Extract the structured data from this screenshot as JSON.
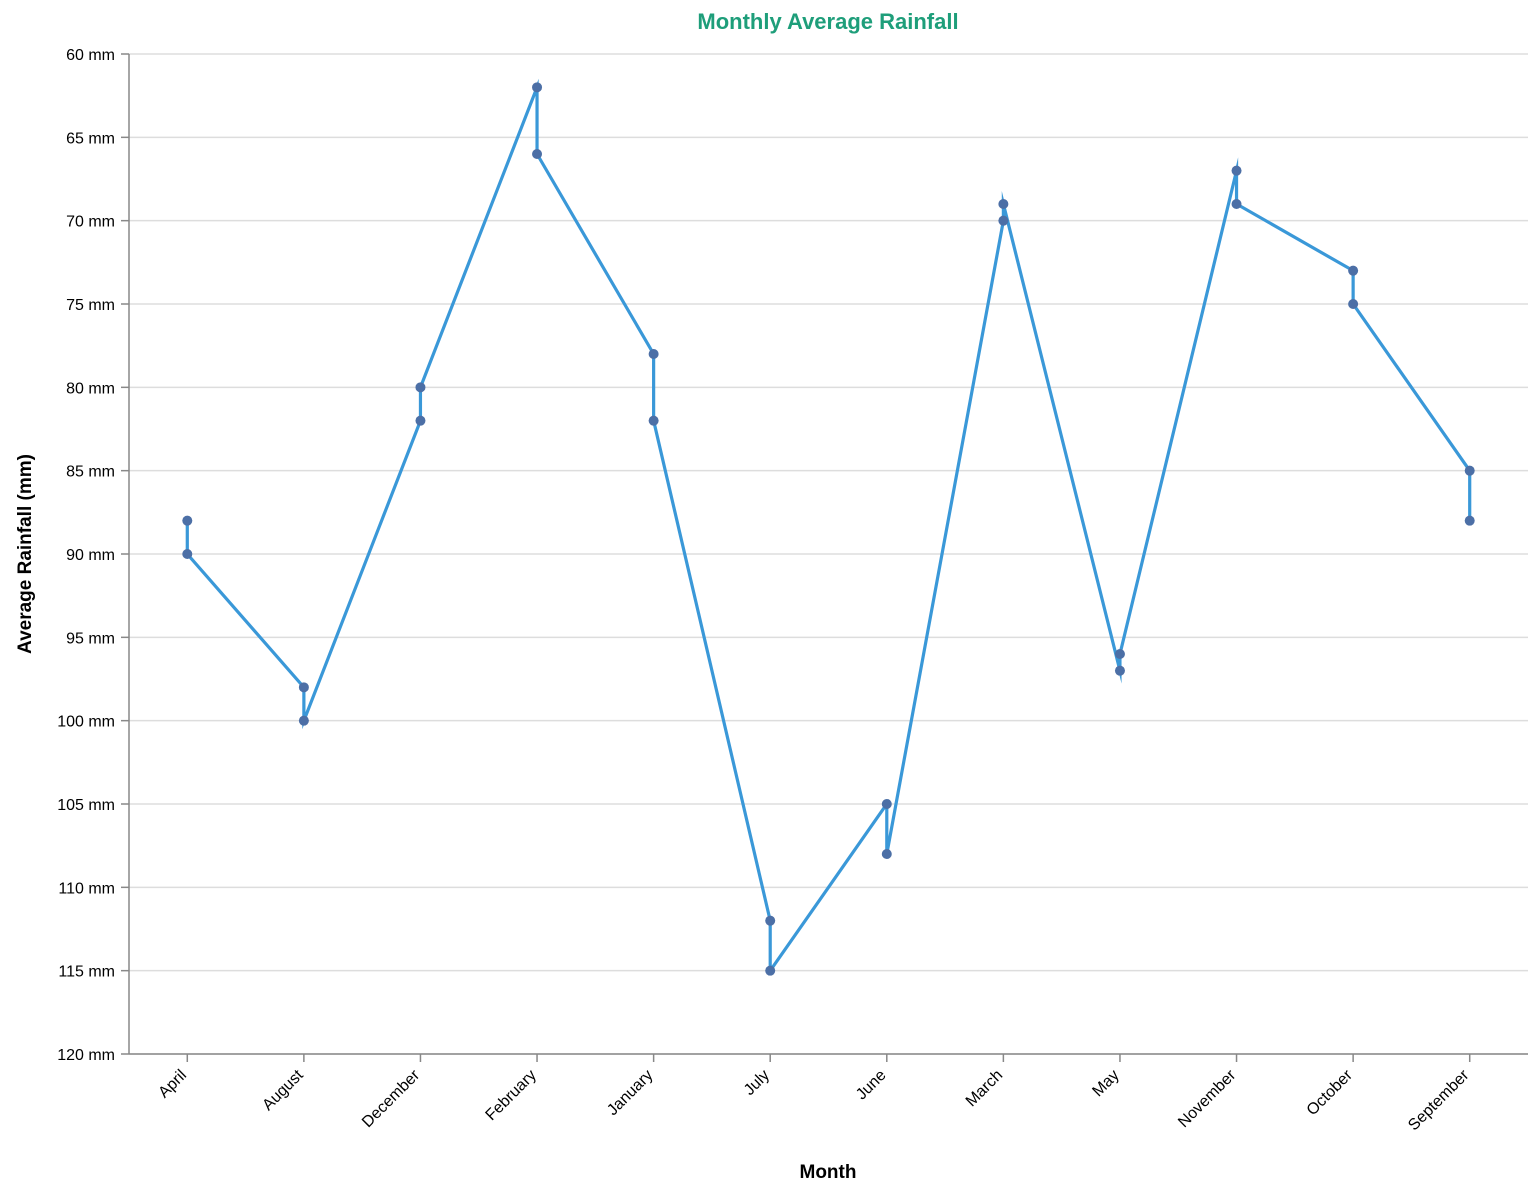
{
  "colors": {
    "title": "#1e9e7a",
    "line": "#3a98d8",
    "point": "#4c6fa6",
    "grid": "#dddddd",
    "axis": "#888888"
  },
  "chart_data": {
    "type": "line",
    "title": "Monthly Average Rainfall",
    "xlabel": "Month",
    "ylabel": "Average Rainfall (mm)",
    "y_unit_suffix": " mm",
    "ylim": [
      60,
      120
    ],
    "y_reversed": true,
    "y_ticks": [
      60,
      65,
      70,
      75,
      80,
      85,
      90,
      95,
      100,
      105,
      110,
      115,
      120
    ],
    "grid": true,
    "categories": [
      "April",
      "August",
      "December",
      "February",
      "January",
      "July",
      "June",
      "March",
      "May",
      "November",
      "October",
      "September"
    ],
    "points": [
      {
        "month": "April",
        "value": 88
      },
      {
        "month": "April",
        "value": 90
      },
      {
        "month": "August",
        "value": 98
      },
      {
        "month": "August",
        "value": 100
      },
      {
        "month": "December",
        "value": 80
      },
      {
        "month": "December",
        "value": 82
      },
      {
        "month": "February",
        "value": 62
      },
      {
        "month": "February",
        "value": 66
      },
      {
        "month": "January",
        "value": 78
      },
      {
        "month": "January",
        "value": 82
      },
      {
        "month": "July",
        "value": 112
      },
      {
        "month": "July",
        "value": 115
      },
      {
        "month": "June",
        "value": 105
      },
      {
        "month": "June",
        "value": 108
      },
      {
        "month": "March",
        "value": 69
      },
      {
        "month": "March",
        "value": 70
      },
      {
        "month": "May",
        "value": 96
      },
      {
        "month": "May",
        "value": 97
      },
      {
        "month": "November",
        "value": 67
      },
      {
        "month": "November",
        "value": 69
      },
      {
        "month": "October",
        "value": 73
      },
      {
        "month": "October",
        "value": 75
      },
      {
        "month": "September",
        "value": 85
      },
      {
        "month": "September",
        "value": 88
      }
    ],
    "line_order": [
      {
        "month": "April",
        "value": 88
      },
      {
        "month": "April",
        "value": 90
      },
      {
        "month": "August",
        "value": 98
      },
      {
        "month": "August",
        "value": 100
      },
      {
        "month": "December",
        "value": 82
      },
      {
        "month": "December",
        "value": 80
      },
      {
        "month": "February",
        "value": 62
      },
      {
        "month": "February",
        "value": 66
      },
      {
        "month": "January",
        "value": 78
      },
      {
        "month": "January",
        "value": 82
      },
      {
        "month": "July",
        "value": 112
      },
      {
        "month": "July",
        "value": 115
      },
      {
        "month": "June",
        "value": 105
      },
      {
        "month": "June",
        "value": 108
      },
      {
        "month": "March",
        "value": 70
      },
      {
        "month": "March",
        "value": 69
      },
      {
        "month": "May",
        "value": 97
      },
      {
        "month": "May",
        "value": 96
      },
      {
        "month": "November",
        "value": 67
      },
      {
        "month": "November",
        "value": 69
      },
      {
        "month": "October",
        "value": 73
      },
      {
        "month": "October",
        "value": 75
      },
      {
        "month": "September",
        "value": 85
      },
      {
        "month": "September",
        "value": 88
      }
    ]
  }
}
